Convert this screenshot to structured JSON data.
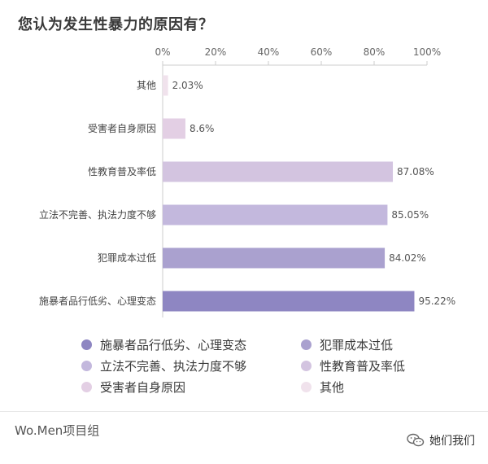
{
  "chart_data": {
    "type": "bar",
    "orientation": "horizontal",
    "title": "您认为发生性暴力的原因有？",
    "categories": [
      "其他",
      "受害者自身原因",
      "性教育普及率低",
      "立法不完善、执法力度不够",
      "犯罪成本过低",
      "施暴者品行低劣、心理变态"
    ],
    "values": [
      2.03,
      8.6,
      87.08,
      85.05,
      84.02,
      95.22
    ],
    "value_labels": [
      "2.03%",
      "8.6%",
      "87.08%",
      "85.05%",
      "84.02%",
      "95.22%"
    ],
    "colors": [
      "#f0e2ec",
      "#e3cfe4",
      "#d3c4e0",
      "#c3b8dd",
      "#aaa1cf",
      "#8e86c2"
    ],
    "xlim": [
      0,
      100
    ],
    "x_ticks": [
      "0%",
      "20%",
      "40%",
      "60%",
      "80%",
      "100%"
    ],
    "xlabel": "",
    "ylabel": "",
    "axis_position": "top",
    "grid": false,
    "legend_position": "bottom",
    "legend": [
      {
        "label": "施暴者品行低劣、心理变态",
        "color": "#8e86c2"
      },
      {
        "label": "犯罪成本过低",
        "color": "#aaa1cf"
      },
      {
        "label": "立法不完善、执法力度不够",
        "color": "#c3b8dd"
      },
      {
        "label": "性教育普及率低",
        "color": "#d3c4e0"
      },
      {
        "label": "受害者自身原因",
        "color": "#e3cfe4"
      },
      {
        "label": "其他",
        "color": "#f0e2ec"
      }
    ]
  },
  "footer": {
    "brand": "Wo.Men项目组",
    "account": "她们我们"
  }
}
